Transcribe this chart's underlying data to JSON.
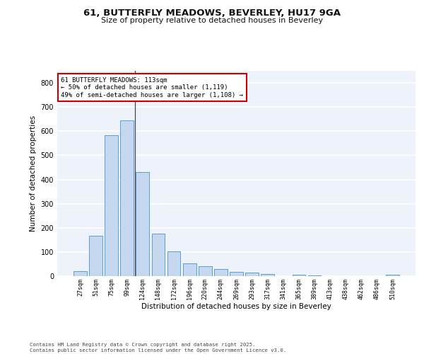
{
  "title1": "61, BUTTERFLY MEADOWS, BEVERLEY, HU17 9GA",
  "title2": "Size of property relative to detached houses in Beverley",
  "xlabel": "Distribution of detached houses by size in Beverley",
  "ylabel": "Number of detached properties",
  "categories": [
    "27sqm",
    "51sqm",
    "75sqm",
    "99sqm",
    "124sqm",
    "148sqm",
    "172sqm",
    "196sqm",
    "220sqm",
    "244sqm",
    "269sqm",
    "293sqm",
    "317sqm",
    "341sqm",
    "365sqm",
    "389sqm",
    "413sqm",
    "438sqm",
    "462sqm",
    "486sqm",
    "510sqm"
  ],
  "values": [
    20,
    168,
    583,
    645,
    430,
    175,
    102,
    54,
    40,
    30,
    17,
    14,
    10,
    0,
    5,
    2,
    0,
    0,
    0,
    0,
    5
  ],
  "bar_color": "#c5d8f0",
  "bar_edge_color": "#5a9fd4",
  "background_color": "#eef2fa",
  "grid_color": "#ffffff",
  "annotation_text": "61 BUTTERFLY MEADOWS: 113sqm\n← 50% of detached houses are smaller (1,119)\n49% of semi-detached houses are larger (1,108) →",
  "annotation_box_color": "#ffffff",
  "annotation_box_edge": "#cc0000",
  "ylim": [
    0,
    850
  ],
  "yticks": [
    0,
    100,
    200,
    300,
    400,
    500,
    600,
    700,
    800
  ],
  "footer": "Contains HM Land Registry data © Crown copyright and database right 2025.\nContains public sector information licensed under the Open Government Licence v3.0.",
  "vline_x": 3.5
}
